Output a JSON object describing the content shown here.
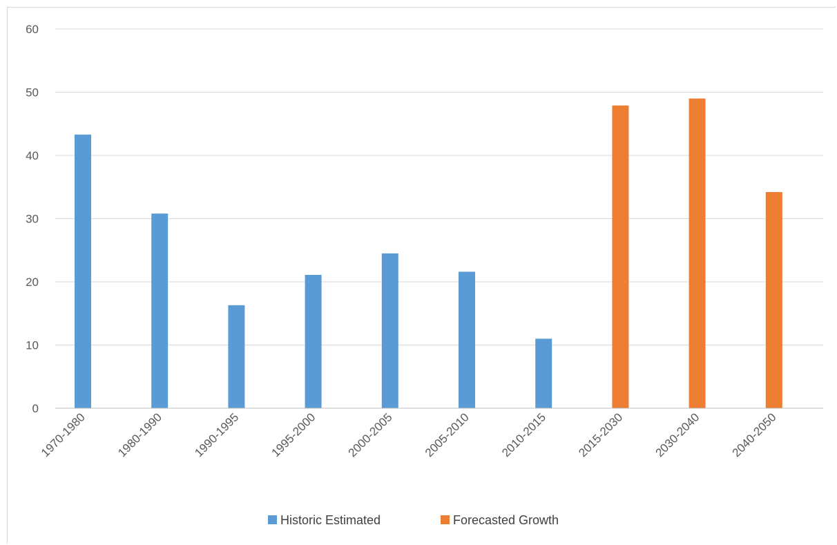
{
  "chart_data": {
    "type": "bar",
    "title": "",
    "xlabel": "",
    "ylabel": "",
    "ylim": [
      0,
      60
    ],
    "yticks": [
      0,
      10,
      20,
      30,
      40,
      50,
      60
    ],
    "grid": true,
    "legend_position": "bottom",
    "categories": [
      "1970-1980",
      "1980-1990",
      "1990-1995",
      "1995-2000",
      "2000-2005",
      "2005-2010",
      "2010-2015",
      "2015-2030",
      "2030-2040",
      "2040-2050"
    ],
    "series": [
      {
        "name": "Historic Estimated",
        "color": "#5b9bd5",
        "values": [
          43.3,
          30.8,
          16.3,
          21.1,
          24.5,
          21.6,
          11.0,
          null,
          null,
          null
        ]
      },
      {
        "name": "Forecasted Growth",
        "color": "#ed7d31",
        "values": [
          null,
          null,
          null,
          null,
          null,
          null,
          null,
          47.9,
          49.0,
          34.2
        ]
      }
    ]
  }
}
